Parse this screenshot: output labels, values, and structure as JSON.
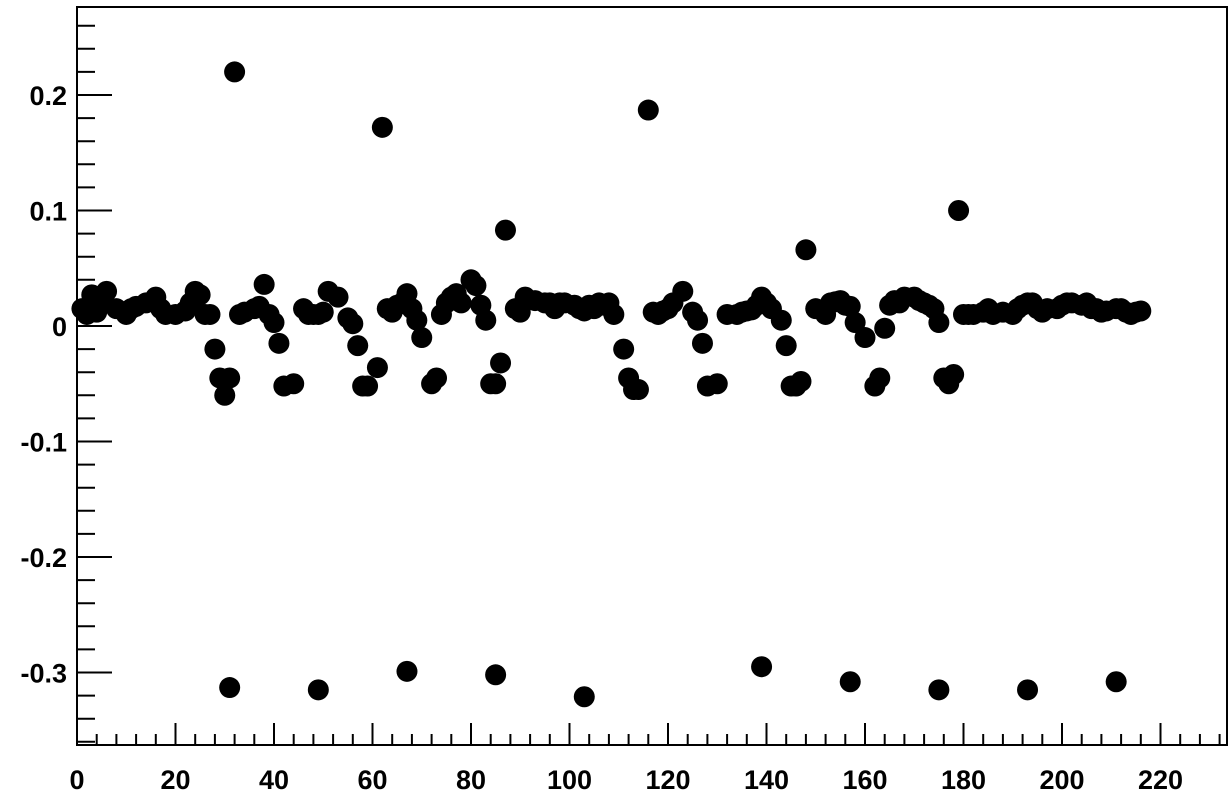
{
  "chart_data": {
    "type": "scatter",
    "title": "",
    "xlabel": "",
    "ylabel": "",
    "xlim": [
      0,
      236
    ],
    "ylim": [
      -0.37,
      0.275
    ],
    "x_major_ticks": [
      0,
      20,
      40,
      60,
      80,
      100,
      120,
      140,
      160,
      180,
      200,
      220
    ],
    "x_tick_labels": [
      "0",
      "20",
      "40",
      "60",
      "80",
      "100",
      "120",
      "140",
      "160",
      "180",
      "200",
      "220"
    ],
    "y_major_ticks": [
      -0.3,
      -0.2,
      -0.1,
      0,
      0.1,
      0.2
    ],
    "y_tick_labels": [
      "-0.3",
      "-0.2",
      "-0.1",
      "0",
      "0.1",
      "0.2"
    ],
    "grid": false,
    "legend": "none",
    "marker_color": "#000000",
    "series": [
      {
        "x": [
          1,
          2,
          3,
          4,
          5,
          6,
          8,
          10,
          11,
          12,
          14,
          16,
          17,
          18,
          20,
          22,
          23,
          24,
          25,
          26,
          27,
          28,
          29,
          30,
          31,
          32,
          33,
          34,
          36,
          37,
          38,
          39,
          40,
          41,
          42,
          44,
          46,
          47,
          48,
          49,
          50,
          51,
          53,
          55,
          56,
          57,
          58,
          59,
          61,
          62,
          63,
          64,
          65,
          66,
          67,
          68,
          69,
          70,
          72,
          73,
          74,
          75,
          76,
          77,
          78,
          80,
          81,
          82,
          83,
          84,
          85,
          86,
          87,
          89,
          90,
          91,
          93,
          95,
          96,
          97,
          98,
          99,
          101,
          102,
          103,
          104,
          105,
          106,
          107,
          108,
          109,
          111,
          112,
          113,
          114,
          116,
          117,
          118,
          119,
          120,
          121,
          123,
          125,
          126,
          127,
          128,
          130,
          132,
          134,
          135,
          136,
          137,
          138,
          139,
          140,
          141,
          143,
          144,
          145,
          146,
          147,
          148,
          150,
          152,
          153,
          154,
          155,
          156,
          157,
          158,
          160,
          162,
          163,
          164,
          165,
          166,
          167,
          168,
          170,
          171,
          172,
          173,
          174,
          175,
          176,
          177,
          178,
          179,
          180,
          181,
          182,
          184,
          185,
          186,
          188,
          190,
          191,
          192,
          193,
          194,
          195,
          196,
          197,
          199,
          200,
          201,
          202,
          204,
          205,
          206,
          207,
          208,
          209,
          211,
          212,
          213,
          214,
          215,
          216
        ],
        "y": [
          0.015,
          0.01,
          0.027,
          0.012,
          0.022,
          0.03,
          0.015,
          0.01,
          0.015,
          0.017,
          0.02,
          0.025,
          0.015,
          0.01,
          0.01,
          0.013,
          0.02,
          0.03,
          0.027,
          0.01,
          0.01,
          -0.02,
          -0.045,
          -0.06,
          -0.045,
          0.22,
          0.01,
          0.012,
          0.015,
          0.017,
          0.036,
          0.01,
          0.003,
          -0.015,
          -0.052,
          -0.05,
          0.015,
          0.01,
          0.01,
          0.01,
          0.012,
          0.03,
          0.025,
          0.007,
          0.002,
          -0.017,
          -0.052,
          -0.052,
          -0.036,
          0.172,
          0.015,
          0.012,
          0.018,
          0.02,
          0.028,
          0.015,
          0.005,
          -0.01,
          -0.05,
          -0.045,
          0.01,
          0.02,
          0.025,
          0.028,
          0.02,
          0.04,
          0.035,
          0.018,
          0.005,
          -0.05,
          -0.05,
          -0.032,
          0.083,
          0.015,
          0.012,
          0.025,
          0.022,
          0.02,
          0.02,
          0.015,
          0.02,
          0.02,
          0.018,
          0.015,
          0.013,
          0.018,
          0.015,
          0.02,
          0.018,
          0.02,
          0.01,
          -0.02,
          -0.045,
          -0.055,
          -0.055,
          0.187,
          0.012,
          0.01,
          0.013,
          0.015,
          0.02,
          0.03,
          0.012,
          0.005,
          -0.015,
          -0.052,
          -0.05,
          0.01,
          0.01,
          0.012,
          0.013,
          0.014,
          0.018,
          0.025,
          0.02,
          0.015,
          0.005,
          -0.017,
          -0.052,
          -0.052,
          -0.048,
          0.066,
          0.015,
          0.01,
          0.02,
          0.021,
          0.022,
          0.018,
          0.017,
          0.003,
          -0.01,
          -0.052,
          -0.045,
          -0.002,
          0.018,
          0.022,
          0.02,
          0.025,
          0.025,
          0.022,
          0.02,
          0.018,
          0.015,
          0.003,
          -0.045,
          -0.05,
          -0.042,
          0.1,
          0.01,
          0.01,
          0.01,
          0.012,
          0.015,
          0.01,
          0.012,
          0.01,
          0.015,
          0.018,
          0.02,
          0.02,
          0.015,
          0.012,
          0.015,
          0.015,
          0.018,
          0.02,
          0.02,
          0.018,
          0.02,
          0.015,
          0.015,
          0.012,
          0.013,
          0.015,
          0.015,
          0.012,
          0.01,
          0.012,
          0.013
        ],
        "outliers_x": [
          31,
          49,
          67,
          85,
          103,
          139,
          157,
          175,
          193,
          211
        ],
        "outliers_y": [
          -0.313,
          -0.315,
          -0.299,
          -0.302,
          -0.321,
          -0.295,
          -0.308,
          -0.315,
          -0.315,
          -0.308
        ]
      }
    ]
  }
}
